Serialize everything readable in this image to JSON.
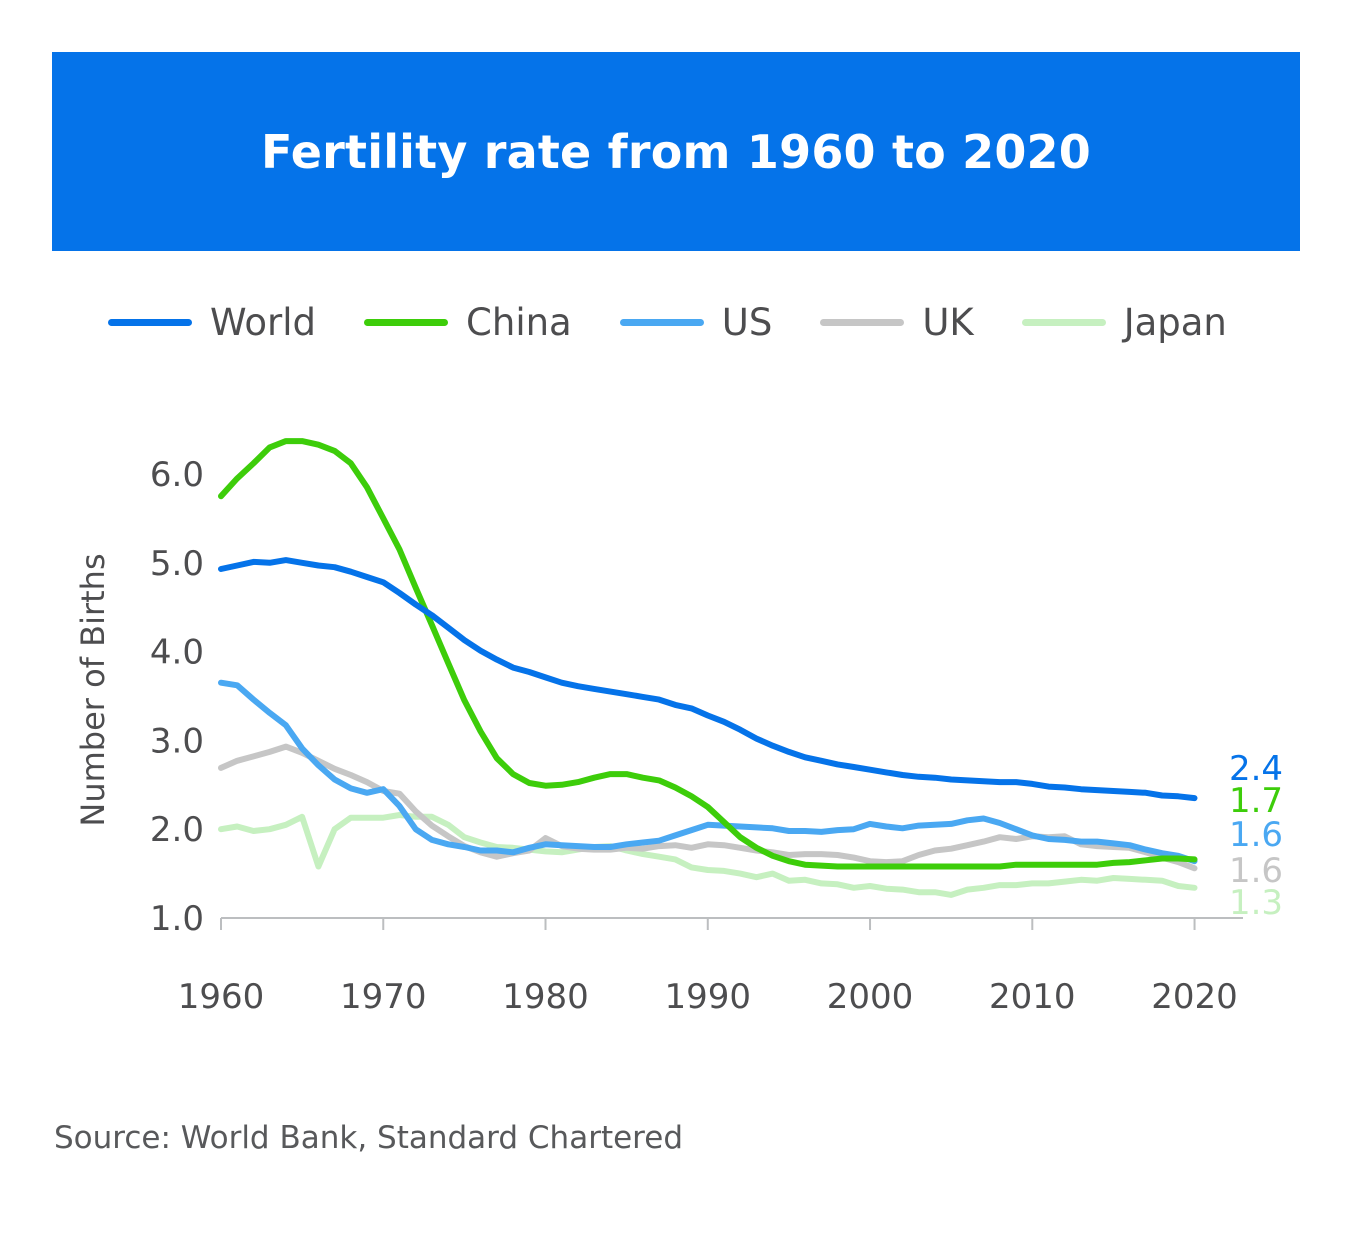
{
  "title": "Fertility rate from 1960 to 2020",
  "source": "Source: World Bank, Standard Chartered",
  "chart_data": {
    "type": "line",
    "title": "Fertility rate from 1960 to 2020",
    "xlabel": "",
    "ylabel": "Number of Births",
    "xlim": [
      1960,
      2022
    ],
    "ylim": [
      1.0,
      6.5
    ],
    "x_ticks": [
      "1960",
      "1970",
      "1980",
      "1990",
      "2000",
      "2010",
      "2020"
    ],
    "y_ticks": [
      "1.0",
      "2.0",
      "3.0",
      "4.0",
      "5.0",
      "6.0"
    ],
    "grid": false,
    "legend": "top",
    "x": [
      1960,
      1961,
      1962,
      1963,
      1964,
      1965,
      1966,
      1967,
      1968,
      1969,
      1970,
      1971,
      1972,
      1973,
      1974,
      1975,
      1976,
      1977,
      1978,
      1979,
      1980,
      1981,
      1982,
      1983,
      1984,
      1985,
      1986,
      1987,
      1988,
      1989,
      1990,
      1991,
      1992,
      1993,
      1994,
      1995,
      1996,
      1997,
      1998,
      1999,
      2000,
      2001,
      2002,
      2003,
      2004,
      2005,
      2006,
      2007,
      2008,
      2009,
      2010,
      2011,
      2012,
      2013,
      2014,
      2015,
      2016,
      2017,
      2018,
      2019,
      2020
    ],
    "series": [
      {
        "name": "World",
        "color": "#0573e9",
        "end_label": "2.4",
        "values": [
          4.93,
          4.97,
          5.01,
          5.0,
          5.03,
          5.0,
          4.97,
          4.95,
          4.9,
          4.84,
          4.78,
          4.66,
          4.53,
          4.41,
          4.27,
          4.13,
          4.01,
          3.91,
          3.82,
          3.77,
          3.71,
          3.65,
          3.61,
          3.58,
          3.55,
          3.52,
          3.49,
          3.46,
          3.4,
          3.36,
          3.28,
          3.21,
          3.12,
          3.02,
          2.94,
          2.87,
          2.81,
          2.77,
          2.73,
          2.7,
          2.67,
          2.64,
          2.61,
          2.59,
          2.58,
          2.56,
          2.55,
          2.54,
          2.53,
          2.53,
          2.51,
          2.48,
          2.47,
          2.45,
          2.44,
          2.43,
          2.42,
          2.41,
          2.38,
          2.37,
          2.35
        ]
      },
      {
        "name": "China",
        "color": "#3dcd0a",
        "end_label": "1.7",
        "values": [
          5.75,
          5.95,
          6.12,
          6.3,
          6.37,
          6.37,
          6.33,
          6.26,
          6.12,
          5.85,
          5.5,
          5.15,
          4.72,
          4.3,
          3.87,
          3.45,
          3.1,
          2.8,
          2.62,
          2.52,
          2.49,
          2.5,
          2.53,
          2.58,
          2.62,
          2.62,
          2.58,
          2.55,
          2.47,
          2.37,
          2.25,
          2.08,
          1.91,
          1.79,
          1.7,
          1.64,
          1.6,
          1.59,
          1.58,
          1.58,
          1.58,
          1.58,
          1.58,
          1.58,
          1.58,
          1.58,
          1.58,
          1.58,
          1.58,
          1.6,
          1.6,
          1.6,
          1.6,
          1.6,
          1.6,
          1.62,
          1.63,
          1.65,
          1.67,
          1.67,
          1.66
        ]
      },
      {
        "name": "US",
        "color": "#4aa8f2",
        "end_label": "1.6",
        "values": [
          3.65,
          3.62,
          3.46,
          3.31,
          3.17,
          2.91,
          2.72,
          2.56,
          2.46,
          2.41,
          2.45,
          2.26,
          2.0,
          1.88,
          1.83,
          1.8,
          1.76,
          1.76,
          1.74,
          1.79,
          1.83,
          1.82,
          1.81,
          1.8,
          1.8,
          1.83,
          1.85,
          1.87,
          1.93,
          1.99,
          2.05,
          2.04,
          2.03,
          2.02,
          2.01,
          1.98,
          1.98,
          1.97,
          1.99,
          2.0,
          2.06,
          2.03,
          2.01,
          2.04,
          2.05,
          2.06,
          2.1,
          2.12,
          2.07,
          2.0,
          1.93,
          1.89,
          1.88,
          1.86,
          1.86,
          1.84,
          1.82,
          1.77,
          1.73,
          1.7,
          1.64
        ]
      },
      {
        "name": "UK",
        "color": "#c6c6c6",
        "end_label": "1.6",
        "values": [
          2.69,
          2.77,
          2.82,
          2.87,
          2.93,
          2.86,
          2.77,
          2.68,
          2.61,
          2.53,
          2.43,
          2.4,
          2.2,
          2.04,
          1.92,
          1.81,
          1.74,
          1.69,
          1.73,
          1.76,
          1.9,
          1.81,
          1.78,
          1.77,
          1.77,
          1.79,
          1.78,
          1.81,
          1.82,
          1.79,
          1.83,
          1.82,
          1.79,
          1.76,
          1.74,
          1.71,
          1.72,
          1.72,
          1.71,
          1.68,
          1.64,
          1.63,
          1.64,
          1.71,
          1.76,
          1.78,
          1.82,
          1.86,
          1.91,
          1.89,
          1.92,
          1.91,
          1.92,
          1.83,
          1.81,
          1.8,
          1.79,
          1.74,
          1.68,
          1.63,
          1.56
        ]
      },
      {
        "name": "Japan",
        "color": "#c6f0c0",
        "end_label": "1.3",
        "values": [
          2.0,
          2.03,
          1.98,
          2.0,
          2.05,
          2.14,
          1.58,
          2.0,
          2.13,
          2.13,
          2.13,
          2.16,
          2.14,
          2.14,
          2.05,
          1.91,
          1.85,
          1.8,
          1.79,
          1.77,
          1.75,
          1.74,
          1.77,
          1.8,
          1.81,
          1.76,
          1.72,
          1.69,
          1.66,
          1.57,
          1.54,
          1.53,
          1.5,
          1.46,
          1.5,
          1.42,
          1.43,
          1.39,
          1.38,
          1.34,
          1.36,
          1.33,
          1.32,
          1.29,
          1.29,
          1.26,
          1.32,
          1.34,
          1.37,
          1.37,
          1.39,
          1.39,
          1.41,
          1.43,
          1.42,
          1.45,
          1.44,
          1.43,
          1.42,
          1.36,
          1.34
        ]
      }
    ]
  }
}
